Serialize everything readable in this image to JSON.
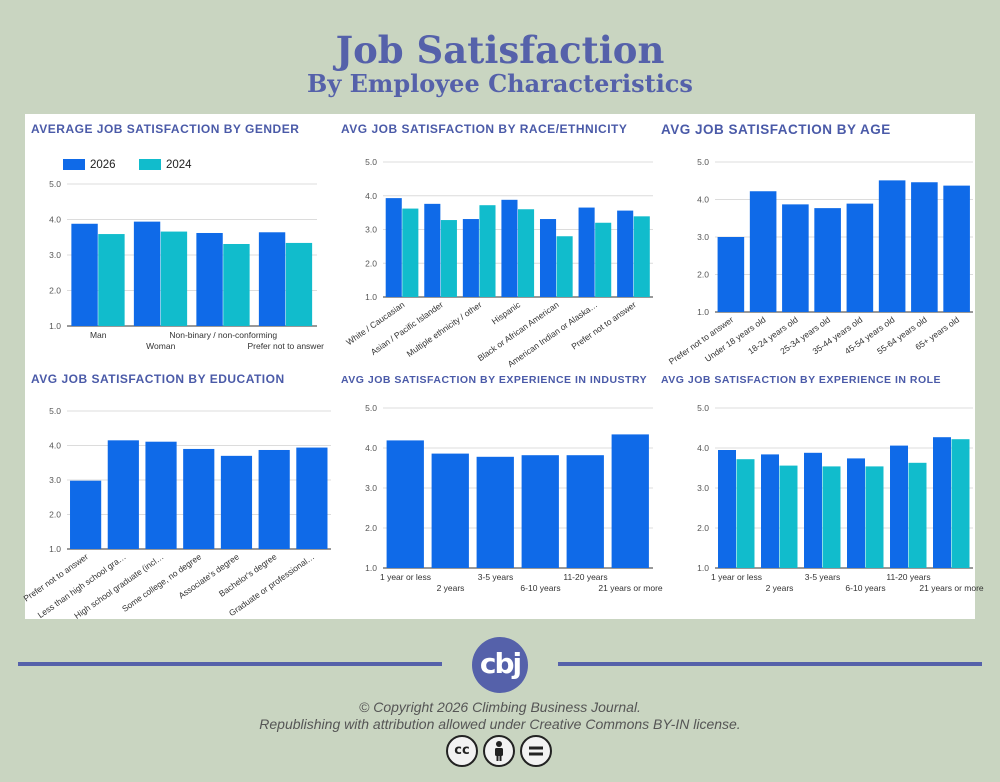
{
  "header": {
    "title": "Job Satisfaction",
    "subtitle": "By Employee Characteristics"
  },
  "footer": {
    "logo_text": "cbj",
    "copyright": "© Copyright 2026 Climbing Business Journal.",
    "license": "Republishing with attribution allowed under Creative Commons BY-IN license.",
    "license_icons": [
      "cc-icon",
      "by-person-icon",
      "equals-icon"
    ]
  },
  "colors": {
    "background": "#c9d5c1",
    "accent": "#5561aa",
    "series_2026": "#0f6ae8",
    "series_2024": "#11bccc"
  },
  "chart_data": [
    {
      "id": "gender",
      "type": "bar",
      "title": "AVERAGE JOB SATISFACTION BY GENDER",
      "categories": [
        "Man",
        "Woman",
        "Non-binary / non-conforming",
        "Prefer not to answer"
      ],
      "series": [
        {
          "name": "2026",
          "values": [
            3.88,
            3.94,
            3.62,
            3.64
          ]
        },
        {
          "name": "2024",
          "values": [
            3.59,
            3.66,
            3.31,
            3.34
          ]
        }
      ],
      "yticks": [
        "5.0",
        "4.0",
        "3.0",
        "2.0",
        "1.0"
      ],
      "ylim": [
        1,
        5
      ],
      "legend": "top-left",
      "grid": true
    },
    {
      "id": "race",
      "type": "bar",
      "title": "AVG JOB SATISFACTION BY RACE/ETHNICITY",
      "categories": [
        "White / Caucasian",
        "Asian / Pacific Islander",
        "Multiple ethnicity / other",
        "Hispanic",
        "Black or African American",
        "American Indian or Alaska…",
        "Prefer not to answer"
      ],
      "series": [
        {
          "values": [
            3.93,
            3.76,
            3.31,
            3.88,
            3.31,
            3.65,
            3.56
          ]
        },
        {
          "values": [
            3.62,
            3.28,
            3.72,
            3.6,
            2.8,
            3.2,
            3.39
          ]
        }
      ],
      "yticks": [
        "5.0",
        "4.0",
        "3.0",
        "2.0",
        "1.0"
      ],
      "ylim": [
        1,
        5
      ],
      "grid": true
    },
    {
      "id": "age",
      "type": "bar",
      "title": "AVG JOB SATISFACTION BY AGE",
      "categories": [
        "Prefer not to answer",
        "Under 18 years old",
        "18-24 years old",
        "25-34 years old",
        "35-44 years old",
        "45-54 years old",
        "55-64 years old",
        "65+ years old"
      ],
      "series": [
        {
          "values": [
            3.0,
            4.22,
            3.87,
            3.77,
            3.89,
            4.51,
            4.46,
            4.37
          ]
        }
      ],
      "yticks": [
        "5.0",
        "4.0",
        "3.0",
        "2.0",
        "1.0"
      ],
      "ylim": [
        1,
        5
      ],
      "grid": true
    },
    {
      "id": "education",
      "type": "bar",
      "title": "AVG JOB SATISFACTION BY EDUCATION",
      "categories": [
        "Prefer not to answer",
        "Less than high school gra…",
        "High school graduate (incl…",
        "Some college, no degree",
        "Associate's degree",
        "Bachelor's degree",
        "Graduate or professional…"
      ],
      "series": [
        {
          "values": [
            2.98,
            4.15,
            4.11,
            3.9,
            3.7,
            3.87,
            3.94
          ]
        }
      ],
      "yticks": [
        "5.0",
        "4.0",
        "3.0",
        "2.0",
        "1.0"
      ],
      "ylim": [
        1,
        5
      ],
      "grid": true
    },
    {
      "id": "industry",
      "type": "bar",
      "title": "AVG JOB SATISFACTION BY EXPERIENCE IN INDUSTRY",
      "categories": [
        "1 year or less",
        "2 years",
        "3-5 years",
        "6-10 years",
        "11-20 years",
        "21 years or more"
      ],
      "series": [
        {
          "values": [
            4.19,
            3.86,
            3.78,
            3.82,
            3.82,
            4.34
          ]
        }
      ],
      "yticks": [
        "5.0",
        "4.0",
        "3.0",
        "2.0",
        "1.0"
      ],
      "ylim": [
        1,
        5
      ],
      "grid": true
    },
    {
      "id": "role",
      "type": "bar",
      "title": "AVG JOB SATISFACTION BY EXPERIENCE IN ROLE",
      "categories": [
        "1 year or less",
        "2 years",
        "3-5 years",
        "6-10 years",
        "11-20 years",
        "21 years or more"
      ],
      "series": [
        {
          "values": [
            3.95,
            3.84,
            3.88,
            3.74,
            4.06,
            4.27
          ]
        },
        {
          "values": [
            3.72,
            3.56,
            3.54,
            3.54,
            3.63,
            4.22
          ]
        }
      ],
      "yticks": [
        "5.0",
        "4.0",
        "3.0",
        "2.0",
        "1.0"
      ],
      "ylim": [
        1,
        5
      ],
      "grid": true
    }
  ]
}
